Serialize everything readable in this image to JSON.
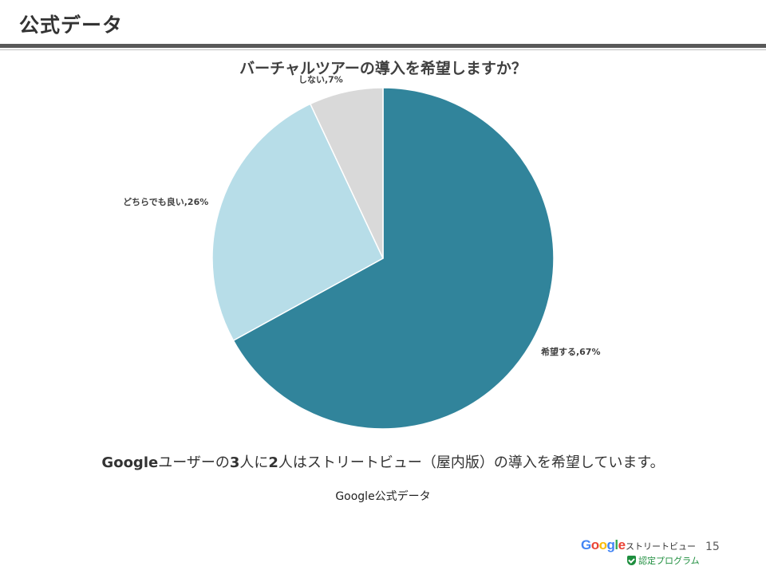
{
  "slide": {
    "title": "公式データ",
    "caption": {
      "parts": [
        {
          "text": "Google",
          "bold": true
        },
        {
          "text": "ユーザーの",
          "bold": false
        },
        {
          "text": "3",
          "bold": true
        },
        {
          "text": "人に",
          "bold": false
        },
        {
          "text": "2",
          "bold": true
        },
        {
          "text": "人はストリートビュー（屋内版）の導入を希望しています。",
          "bold": false
        }
      ]
    },
    "source": "Google公式データ",
    "page_number": "15",
    "logo": {
      "brand_letters": [
        "G",
        "o",
        "o",
        "g",
        "l",
        "e"
      ],
      "brand_colors": [
        "#4285f4",
        "#ea4335",
        "#fbbc05",
        "#4285f4",
        "#34a853",
        "#ea4335"
      ],
      "product": "ストリートビュー",
      "certification": "認定プログラム",
      "cert_icon": "shield-check-icon"
    }
  },
  "chart_data": {
    "type": "pie",
    "title": "バーチャルツアーの導入を希望しますか？",
    "slices": [
      {
        "label": "希望する,67%",
        "value": 67,
        "color": "#31849b"
      },
      {
        "label": "どちらでも良い,26%",
        "value": 26,
        "color": "#b7dde8"
      },
      {
        "label": "しない,7%",
        "value": 7,
        "color": "#d9d9d9"
      }
    ],
    "legend": "none"
  }
}
